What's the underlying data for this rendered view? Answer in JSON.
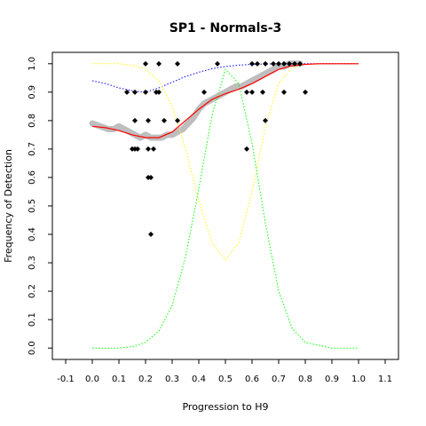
{
  "chart_data": {
    "type": "scatter",
    "title": "SP1 - Normals-3",
    "xlabel": "Progression to H9",
    "ylabel": "Frequency of Detection",
    "xlim": [
      -0.15,
      1.15
    ],
    "ylim": [
      -0.04,
      1.04
    ],
    "x_ticks": [
      "-0.1",
      "0.0",
      "0.1",
      "0.2",
      "0.3",
      "0.4",
      "0.5",
      "0.6",
      "0.7",
      "0.8",
      "0.9",
      "1.0",
      "1.1"
    ],
    "y_ticks": [
      "0.0",
      "0.1",
      "0.2",
      "0.3",
      "0.4",
      "0.5",
      "0.6",
      "0.7",
      "0.8",
      "0.9",
      "1.0"
    ],
    "grid": false,
    "legend": "none",
    "colors": {
      "points": "#000000",
      "smooth_band": "#bebebe",
      "fit_line": "#ff0000",
      "blue_curve": "#0000ff",
      "yellow_curve": "#ffff00",
      "green_curve": "#00ff00"
    },
    "series": [
      {
        "kind": "points",
        "x": [
          0.2,
          0.25,
          0.32,
          0.47,
          0.6,
          0.62,
          0.65,
          0.68,
          0.7,
          0.72,
          0.74,
          0.76,
          0.78,
          0.13,
          0.16,
          0.2,
          0.24,
          0.25,
          0.42,
          0.58,
          0.6,
          0.64,
          0.72,
          0.8,
          0.16,
          0.21,
          0.27,
          0.32,
          0.65,
          0.15,
          0.16,
          0.17,
          0.21,
          0.23,
          0.58,
          0.21,
          0.22,
          0.22
        ],
        "y": [
          1.0,
          1.0,
          1.0,
          1.0,
          1.0,
          1.0,
          1.0,
          1.0,
          1.0,
          1.0,
          1.0,
          1.0,
          1.0,
          0.9,
          0.9,
          0.9,
          0.9,
          0.9,
          0.9,
          0.9,
          0.9,
          0.9,
          0.9,
          0.9,
          0.8,
          0.8,
          0.8,
          0.8,
          0.8,
          0.7,
          0.7,
          0.7,
          0.7,
          0.7,
          0.7,
          0.6,
          0.6,
          0.4
        ]
      },
      {
        "kind": "band",
        "x": [
          0.0,
          0.03,
          0.06,
          0.08,
          0.1,
          0.12,
          0.14,
          0.16,
          0.18,
          0.2,
          0.22,
          0.24,
          0.26,
          0.28,
          0.3,
          0.32,
          0.34,
          0.36,
          0.38,
          0.4,
          0.42,
          0.44,
          0.46,
          0.48,
          0.5,
          0.52,
          0.54,
          0.56,
          0.58,
          0.6,
          0.62,
          0.64,
          0.66,
          0.68,
          0.7,
          0.72,
          0.74,
          0.76,
          0.78
        ],
        "y": [
          0.79,
          0.78,
          0.77,
          0.77,
          0.78,
          0.77,
          0.76,
          0.75,
          0.74,
          0.75,
          0.74,
          0.74,
          0.74,
          0.75,
          0.75,
          0.76,
          0.77,
          0.79,
          0.81,
          0.84,
          0.86,
          0.87,
          0.88,
          0.89,
          0.9,
          0.91,
          0.92,
          0.92,
          0.93,
          0.94,
          0.95,
          0.96,
          0.97,
          0.98,
          0.99,
          0.99,
          1.0,
          1.0,
          1.0
        ]
      },
      {
        "kind": "line",
        "x": [
          0.0,
          0.05,
          0.1,
          0.15,
          0.2,
          0.25,
          0.3,
          0.35,
          0.4,
          0.45,
          0.5,
          0.55,
          0.6,
          0.65,
          0.7,
          0.75,
          0.8,
          0.85,
          0.9,
          1.0
        ],
        "y": [
          0.78,
          0.775,
          0.765,
          0.75,
          0.74,
          0.74,
          0.76,
          0.8,
          0.84,
          0.875,
          0.895,
          0.91,
          0.93,
          0.955,
          0.98,
          0.993,
          0.998,
          1.0,
          1.0,
          1.0
        ]
      },
      {
        "kind": "dotted",
        "x": [
          0.0,
          0.05,
          0.1,
          0.15,
          0.2,
          0.25,
          0.3,
          0.35,
          0.4,
          0.45,
          0.5,
          0.55,
          0.6,
          0.65,
          0.7,
          0.75,
          0.8,
          0.9,
          1.0
        ],
        "y": [
          0.94,
          0.93,
          0.915,
          0.905,
          0.9,
          0.915,
          0.935,
          0.955,
          0.97,
          0.983,
          0.99,
          0.995,
          0.998,
          0.999,
          1.0,
          1.0,
          1.0,
          1.0,
          1.0
        ]
      },
      {
        "kind": "dotted",
        "x": [
          0.0,
          0.1,
          0.15,
          0.2,
          0.25,
          0.3,
          0.35,
          0.4,
          0.45,
          0.5,
          0.55,
          0.6,
          0.65,
          0.7,
          0.75,
          0.8,
          0.9,
          1.0
        ],
        "y": [
          1.0,
          1.0,
          0.995,
          0.98,
          0.94,
          0.85,
          0.7,
          0.52,
          0.37,
          0.31,
          0.37,
          0.55,
          0.78,
          0.93,
          0.985,
          0.998,
          1.0,
          1.0
        ]
      },
      {
        "kind": "dotted",
        "x": [
          0.0,
          0.1,
          0.15,
          0.2,
          0.25,
          0.3,
          0.35,
          0.4,
          0.45,
          0.5,
          0.55,
          0.6,
          0.65,
          0.7,
          0.75,
          0.8,
          0.9,
          1.0
        ],
        "y": [
          0.0,
          0.0,
          0.005,
          0.02,
          0.06,
          0.15,
          0.32,
          0.56,
          0.82,
          0.98,
          0.93,
          0.72,
          0.44,
          0.2,
          0.07,
          0.02,
          0.0,
          0.0
        ]
      }
    ]
  }
}
